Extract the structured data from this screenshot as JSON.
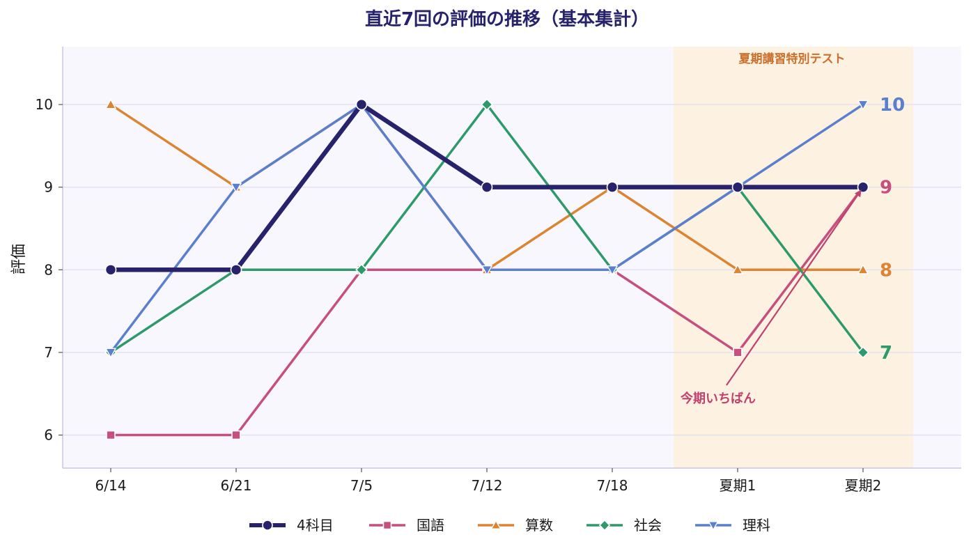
{
  "chart_data": {
    "type": "line",
    "title": "直近7回の評価の推移（基本集計）",
    "xlabel": "",
    "ylabel": "評価",
    "categories": [
      "6/14",
      "6/21",
      "7/5",
      "7/12",
      "7/18",
      "夏期1",
      "夏期2"
    ],
    "yticks": [
      6,
      7,
      8,
      9,
      10
    ],
    "ylim": [
      5.6,
      10.7
    ],
    "grid": "horizontal",
    "legend_position": "bottom",
    "series": [
      {
        "name": "4科目",
        "values": [
          8,
          8,
          10,
          9,
          9,
          9,
          9
        ],
        "color": "#27226b",
        "marker": "circle",
        "end_label": "9"
      },
      {
        "name": "国語",
        "values": [
          6,
          6,
          8,
          8,
          8,
          7,
          9
        ],
        "color": "#c64f7e",
        "marker": "square",
        "end_label": "9"
      },
      {
        "name": "算数",
        "values": [
          10,
          9,
          10,
          8,
          9,
          8,
          8
        ],
        "color": "#dd8432",
        "marker": "triangle-up",
        "end_label": "8"
      },
      {
        "name": "社会",
        "values": [
          7,
          8,
          8,
          10,
          8,
          9,
          7
        ],
        "color": "#2e9a6b",
        "marker": "diamond",
        "end_label": "7"
      },
      {
        "name": "理科",
        "values": [
          7,
          9,
          10,
          8,
          8,
          9,
          10
        ],
        "color": "#5b7fcf",
        "marker": "triangle-down",
        "end_label": "10"
      }
    ],
    "highlight_band": {
      "from": "夏期1",
      "to": "夏期2",
      "label": "夏期講習特別テスト",
      "color": "#fdf1e1"
    },
    "annotation": {
      "text": "今期いちばん",
      "series": "国語",
      "category": "夏期2"
    }
  }
}
